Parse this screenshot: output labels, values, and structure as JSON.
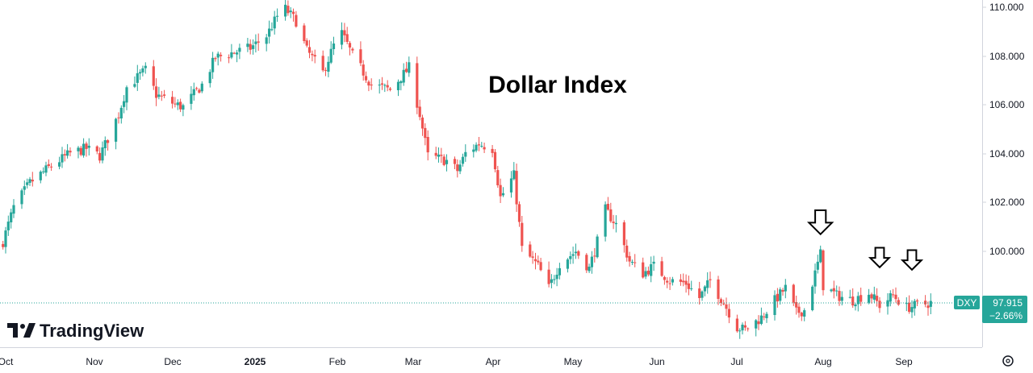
{
  "chart_data": {
    "type": "candlestick",
    "title": "Dollar Index",
    "symbol": "DXY",
    "last_price": "97.915",
    "change_percent": "−2.66%",
    "ylim": [
      96.5,
      110.2
    ],
    "y_ticks": [
      "110.000",
      "108.000",
      "106.000",
      "104.000",
      "102.000",
      "100.000"
    ],
    "x_labels": [
      "Oct",
      "Nov",
      "Dec",
      "2025",
      "Feb",
      "Mar",
      "Apr",
      "May",
      "Jun",
      "Jul",
      "Aug",
      "Sep"
    ],
    "grid": false,
    "colors": {
      "up": "#26a69a",
      "down": "#ef5350",
      "badge": "#26a69a",
      "axis": "#d1d4dc"
    },
    "close_path": [
      [
        "2024-09-30",
        100.4
      ],
      [
        "2024-10-04",
        101.8
      ],
      [
        "2024-10-10",
        102.8
      ],
      [
        "2024-10-18",
        103.5
      ],
      [
        "2024-10-25",
        104.0
      ],
      [
        "2024-10-31",
        104.2
      ],
      [
        "2024-11-05",
        103.9
      ],
      [
        "2024-11-08",
        104.6
      ],
      [
        "2024-11-12",
        105.6
      ],
      [
        "2024-11-15",
        106.7
      ],
      [
        "2024-11-22",
        107.4
      ],
      [
        "2024-11-26",
        106.4
      ],
      [
        "2024-12-03",
        106.0
      ],
      [
        "2024-12-06",
        105.9
      ],
      [
        "2024-12-13",
        106.8
      ],
      [
        "2024-12-18",
        107.9
      ],
      [
        "2024-12-24",
        108.1
      ],
      [
        "2024-12-31",
        108.3
      ],
      [
        "2025-01-06",
        108.8
      ],
      [
        "2025-01-10",
        109.6
      ],
      [
        "2025-01-13",
        109.9
      ],
      [
        "2025-01-17",
        109.4
      ],
      [
        "2025-01-21",
        108.2
      ],
      [
        "2025-01-27",
        107.3
      ],
      [
        "2025-01-31",
        108.4
      ],
      [
        "2025-02-03",
        108.9
      ],
      [
        "2025-02-07",
        108.0
      ],
      [
        "2025-02-14",
        106.8
      ],
      [
        "2025-02-21",
        106.6
      ],
      [
        "2025-02-28",
        107.5
      ],
      [
        "2025-03-04",
        105.6
      ],
      [
        "2025-03-07",
        103.9
      ],
      [
        "2025-03-14",
        103.7
      ],
      [
        "2025-03-18",
        103.3
      ],
      [
        "2025-03-21",
        104.0
      ],
      [
        "2025-03-26",
        104.4
      ],
      [
        "2025-03-31",
        104.2
      ],
      [
        "2025-04-03",
        102.2
      ],
      [
        "2025-04-08",
        103.1
      ],
      [
        "2025-04-11",
        100.1
      ],
      [
        "2025-04-17",
        99.4
      ],
      [
        "2025-04-21",
        98.5
      ],
      [
        "2025-04-25",
        99.5
      ],
      [
        "2025-05-01",
        100.0
      ],
      [
        "2025-05-06",
        99.3
      ],
      [
        "2025-05-09",
        100.4
      ],
      [
        "2025-05-12",
        101.7
      ],
      [
        "2025-05-16",
        101.1
      ],
      [
        "2025-05-21",
        99.6
      ],
      [
        "2025-05-26",
        99.1
      ],
      [
        "2025-05-30",
        99.4
      ],
      [
        "2025-06-05",
        98.8
      ],
      [
        "2025-06-11",
        98.7
      ],
      [
        "2025-06-16",
        98.1
      ],
      [
        "2025-06-20",
        98.8
      ],
      [
        "2025-06-25",
        97.9
      ],
      [
        "2025-06-30",
        96.9
      ],
      [
        "2025-07-03",
        96.8
      ],
      [
        "2025-07-09",
        97.3
      ],
      [
        "2025-07-14",
        98.0
      ],
      [
        "2025-07-18",
        98.5
      ],
      [
        "2025-07-22",
        97.5
      ],
      [
        "2025-07-25",
        97.6
      ],
      [
        "2025-07-28",
        98.7
      ],
      [
        "2025-07-31",
        99.9
      ],
      [
        "2025-08-01",
        98.6
      ],
      [
        "2025-08-06",
        98.2
      ],
      [
        "2025-08-12",
        98.0
      ],
      [
        "2025-08-18",
        98.3
      ],
      [
        "2025-08-22",
        97.8
      ],
      [
        "2025-08-27",
        98.2
      ],
      [
        "2025-09-01",
        97.7
      ],
      [
        "2025-09-05",
        97.8
      ],
      [
        "2025-09-10",
        97.9
      ]
    ],
    "annotations": [
      {
        "type": "arrow-down",
        "date": "2025-07-31",
        "price": 100.7
      },
      {
        "type": "arrow-down",
        "date": "2025-08-22",
        "price": 99.35
      },
      {
        "type": "arrow-down",
        "date": "2025-09-03",
        "price": 99.25
      }
    ]
  },
  "branding": {
    "logo_text": "TradingView"
  },
  "icons": {
    "settings": "gear-icon",
    "logo": "tradingview-logo-icon",
    "annotation": "arrow-down-icon"
  }
}
